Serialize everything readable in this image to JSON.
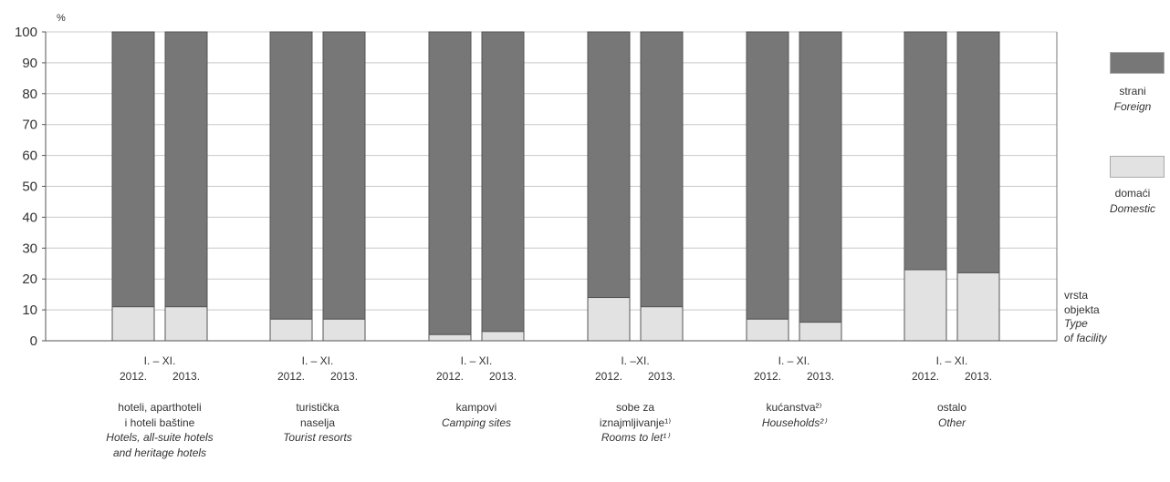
{
  "chart_data": {
    "type": "bar",
    "stacked": true,
    "percent_stacked": true,
    "unit_label": "%",
    "ylim": [
      0,
      100
    ],
    "yticks": [
      0,
      10,
      20,
      30,
      40,
      50,
      60,
      70,
      80,
      90,
      100
    ],
    "grid": true,
    "legend_position": "right",
    "colors": {
      "foreign": "#777777",
      "domestic": "#e2e2e2"
    },
    "legend": [
      {
        "key": "foreign",
        "line1": "strani",
        "line2": "Foreign"
      },
      {
        "key": "domestic",
        "line1": "domaći",
        "line2": "Domestic"
      }
    ],
    "axis_title": {
      "line1": "vrsta",
      "line2": "objekta",
      "line3": "Type",
      "line4": "of facility"
    },
    "groups": [
      {
        "period": "I. – XI.",
        "years": [
          "2012.",
          "2013."
        ],
        "name_hr": [
          "hoteli, aparthoteli",
          "i hoteli baštine"
        ],
        "name_en": [
          "Hotels, all-suite hotels",
          "and heritage hotels"
        ],
        "domestic": [
          11,
          11
        ]
      },
      {
        "period": "I. – XI.",
        "years": [
          "2012.",
          "2013."
        ],
        "name_hr": [
          "turistička",
          "naselja"
        ],
        "name_en": [
          "Tourist resorts"
        ],
        "domestic": [
          7,
          7
        ]
      },
      {
        "period": "I. – XI.",
        "years": [
          "2012.",
          "2013."
        ],
        "name_hr": [
          "kampovi"
        ],
        "name_en": [
          "Camping sites"
        ],
        "domestic": [
          2,
          3
        ]
      },
      {
        "period": "I. –XI.",
        "years": [
          "2012.",
          "2013."
        ],
        "name_hr": [
          "sobe za",
          "iznajmljivanje¹⁾"
        ],
        "name_en": [
          "Rooms to let¹⁾"
        ],
        "domestic": [
          14,
          11
        ]
      },
      {
        "period": "I. – XI.",
        "years": [
          "2012.",
          "2013."
        ],
        "name_hr": [
          "kućanstva²⁾"
        ],
        "name_en": [
          "Households²⁾"
        ],
        "domestic": [
          7,
          6
        ]
      },
      {
        "period": "I. – XI.",
        "years": [
          "2012.",
          "2013."
        ],
        "name_hr": [
          "ostalo"
        ],
        "name_en": [
          "Other"
        ],
        "domestic": [
          23,
          22
        ]
      }
    ]
  }
}
